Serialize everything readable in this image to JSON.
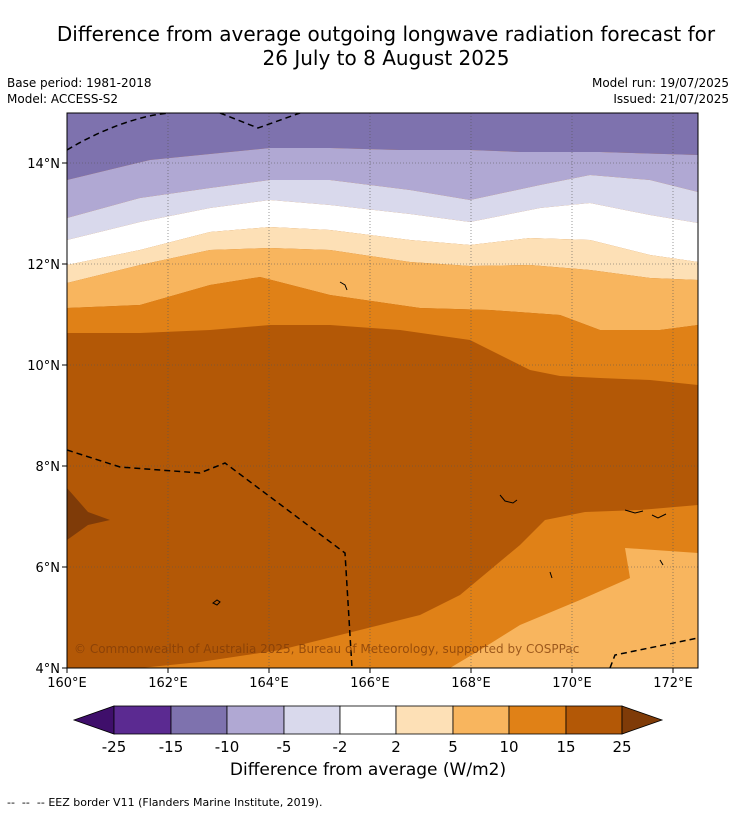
{
  "title": {
    "line1": "Difference from average outgoing longwave radiation forecast for",
    "line2": "26 July to 8 August 2025"
  },
  "meta": {
    "base_period": "Base period: 1981-2018",
    "model": "Model: ACCESS-S2",
    "model_run": "Model run: 19/07/2025",
    "issued": "Issued: 21/07/2025"
  },
  "map": {
    "lat_ticks": [
      "14°N",
      "12°N",
      "10°N",
      "8°N",
      "6°N",
      "4°N"
    ],
    "lon_ticks": [
      "160°E",
      "162°E",
      "164°E",
      "166°E",
      "168°E",
      "170°E",
      "172°E"
    ],
    "copyright": "© Commonwealth of Australia 2025, Bureau of Meteorology, supported by COSPPac"
  },
  "colorbar": {
    "ticks": [
      "-25",
      "-15",
      "-10",
      "-5",
      "-2",
      "2",
      "5",
      "10",
      "15",
      "25"
    ],
    "colors": [
      "#3f0f6b",
      "#5b2a91",
      "#7e72ae",
      "#b0a8d3",
      "#d9d9ec",
      "#ffffff",
      "#fde0b6",
      "#f8b55e",
      "#e08117",
      "#b35806",
      "#7f3b08"
    ],
    "label": "Difference from average (W/m2)"
  },
  "legend": {
    "eez": "EEZ border V11 (Flanders Marine Institute, 2019)."
  }
}
